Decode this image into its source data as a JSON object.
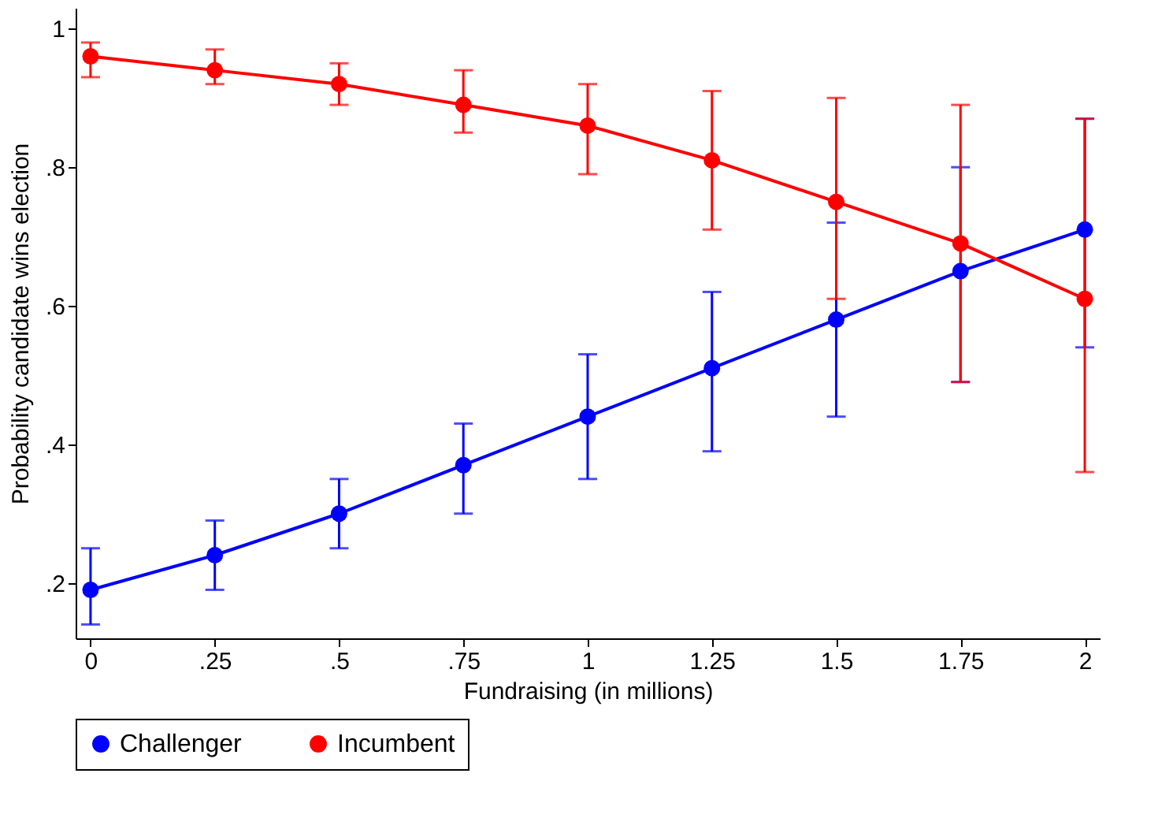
{
  "chart_data": {
    "type": "line",
    "xlabel": "Fundraising (in millions)",
    "ylabel": "Probability candidate wins election",
    "x": [
      0,
      0.25,
      0.5,
      0.75,
      1,
      1.25,
      1.5,
      1.75,
      2
    ],
    "series": [
      {
        "name": "Challenger",
        "color": "#0000ff",
        "values": [
          0.19,
          0.24,
          0.3,
          0.37,
          0.44,
          0.51,
          0.58,
          0.65,
          0.71
        ],
        "errors": [
          [
            0.14,
            0.25
          ],
          [
            0.19,
            0.29
          ],
          [
            0.25,
            0.35
          ],
          [
            0.3,
            0.43
          ],
          [
            0.35,
            0.53
          ],
          [
            0.39,
            0.62
          ],
          [
            0.44,
            0.72
          ],
          [
            0.49,
            0.8
          ],
          [
            0.54,
            0.87
          ]
        ]
      },
      {
        "name": "Incumbent",
        "color": "#ff0000",
        "values": [
          0.96,
          0.94,
          0.92,
          0.89,
          0.86,
          0.81,
          0.75,
          0.69,
          0.61
        ],
        "errors": [
          [
            0.93,
            0.98
          ],
          [
            0.92,
            0.97
          ],
          [
            0.89,
            0.95
          ],
          [
            0.85,
            0.94
          ],
          [
            0.79,
            0.92
          ],
          [
            0.71,
            0.91
          ],
          [
            0.61,
            0.9
          ],
          [
            0.49,
            0.89
          ],
          [
            0.36,
            0.87
          ]
        ]
      }
    ],
    "xlim": [
      -0.03,
      2.03
    ],
    "xticks": [
      0,
      {
        "value": 0.25,
        "label": ".25"
      },
      {
        "value": 0.5,
        "label": ".5"
      },
      {
        "value": 0.75,
        "label": ".75"
      },
      1,
      1.25,
      1.5,
      1.75,
      2
    ],
    "ylim": [
      0.12,
      1.03
    ],
    "yticks": [
      {
        "value": 0.2,
        "label": ".2"
      },
      {
        "value": 0.4,
        "label": ".4"
      },
      {
        "value": 0.6,
        "label": ".6"
      },
      {
        "value": 0.8,
        "label": ".8"
      },
      1
    ],
    "grid": false,
    "legend": "bottom",
    "marker": "circle",
    "line_style": "solid"
  }
}
